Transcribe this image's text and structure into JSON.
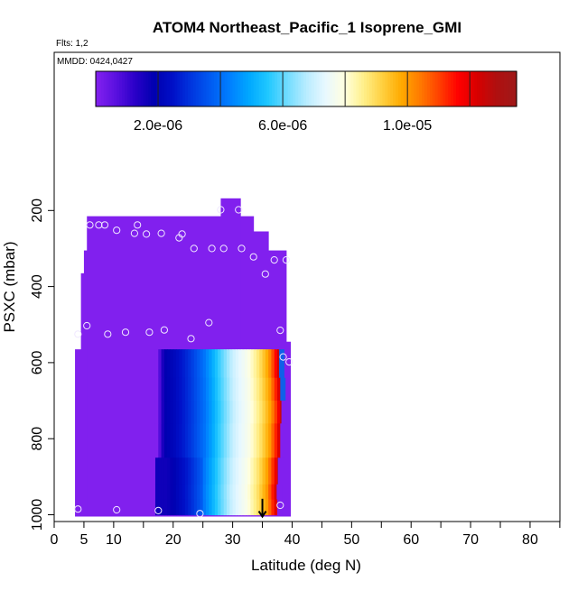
{
  "chart_data": {
    "type": "heatmap",
    "title": "ATOM4 Northeast_Pacific_1 Isoprene_GMI",
    "annotations": {
      "flights": "Flts: 1,2",
      "dates": "MMDD: 0424,0427"
    },
    "xlabel": "Latitude (deg N)",
    "ylabel": "PSXC (mbar)",
    "xlim": [
      0,
      85
    ],
    "ylim": [
      1000,
      60
    ],
    "x_ticks": [
      0,
      5,
      10,
      20,
      30,
      40,
      50,
      60,
      70,
      80
    ],
    "x_minor_ticks": [
      0,
      5,
      10,
      15,
      20,
      25,
      30,
      35,
      40,
      45,
      50,
      55,
      60,
      65,
      70,
      75,
      80,
      85
    ],
    "y_ticks": [
      200,
      400,
      600,
      800,
      1000
    ],
    "colorbar": {
      "min": 0,
      "max": 1.35e-05,
      "tick_values": [
        2e-06,
        6e-06,
        1e-05
      ],
      "tick_labels": [
        "2.0e-06",
        "6.0e-06",
        "1.0e-05"
      ],
      "colors": [
        "#8120ee",
        "#5a10e0",
        "#2a00c8",
        "#0000b0",
        "#0010c8",
        "#0038e0",
        "#005cf2",
        "#0080ff",
        "#00a8ff",
        "#20c8ff",
        "#70dcff",
        "#b8ecff",
        "#e8f8ff",
        "#ffffe0",
        "#fff08c",
        "#ffd040",
        "#ffaa00",
        "#ff7a00",
        "#ff4000",
        "#ff0000",
        "#d80000",
        "#b01010",
        "#a01818"
      ]
    },
    "background_color": "#8120ee",
    "column_tops": [
      {
        "lat_from": 3.5,
        "lat_to": 4.5,
        "p_top": 565
      },
      {
        "lat_from": 4.5,
        "lat_to": 5.0,
        "p_top": 365
      },
      {
        "lat_from": 5.0,
        "lat_to": 5.5,
        "p_top": 305
      },
      {
        "lat_from": 5.5,
        "lat_to": 28.0,
        "p_top": 215
      },
      {
        "lat_from": 28.0,
        "lat_to": 31.3,
        "p_top": 168
      },
      {
        "lat_from": 31.3,
        "lat_to": 33.5,
        "p_top": 215
      },
      {
        "lat_from": 33.5,
        "lat_to": 36.0,
        "p_top": 255
      },
      {
        "lat_from": 36.0,
        "lat_to": 39.0,
        "p_top": 305
      },
      {
        "lat_from": 39.0,
        "lat_to": 39.7,
        "p_top": 545
      }
    ],
    "gradient_region": {
      "lat_from": 17.0,
      "lat_to": 39.0,
      "p_top": 565,
      "p_bottom": 1000,
      "bands": [
        {
          "p_from": 565,
          "p_to": 640,
          "front_lat": 37.8
        },
        {
          "p_from": 640,
          "p_to": 700,
          "front_lat": 38.0
        },
        {
          "p_from": 700,
          "p_to": 760,
          "front_lat": 38.2
        },
        {
          "p_from": 760,
          "p_to": 850,
          "front_lat": 38.0
        },
        {
          "p_from": 850,
          "p_to": 920,
          "front_lat": 37.6
        },
        {
          "p_from": 920,
          "p_to": 960,
          "front_lat": 37.4
        },
        {
          "p_from": 960,
          "p_to": 1000,
          "front_lat": 37.5
        }
      ]
    },
    "observation_points": [
      [
        6,
        238
      ],
      [
        7.5,
        238
      ],
      [
        8.5,
        238
      ],
      [
        14,
        238
      ],
      [
        10.5,
        252
      ],
      [
        13.5,
        260
      ],
      [
        15.5,
        262
      ],
      [
        18,
        260
      ],
      [
        21,
        272
      ],
      [
        21.5,
        262
      ],
      [
        28,
        198
      ],
      [
        31,
        198
      ],
      [
        23.5,
        300
      ],
      [
        26.5,
        300
      ],
      [
        28.5,
        300
      ],
      [
        31.5,
        300
      ],
      [
        33.5,
        322
      ],
      [
        35.5,
        367
      ],
      [
        37,
        330
      ],
      [
        39,
        330
      ],
      [
        4,
        525
      ],
      [
        5.5,
        503
      ],
      [
        9,
        525
      ],
      [
        12,
        520
      ],
      [
        16,
        520
      ],
      [
        18.5,
        514
      ],
      [
        23,
        537
      ],
      [
        26,
        495
      ],
      [
        38,
        515
      ],
      [
        4,
        985
      ],
      [
        10.5,
        987
      ],
      [
        17.5,
        989
      ],
      [
        24.5,
        997
      ],
      [
        38,
        975
      ],
      [
        38.5,
        585
      ],
      [
        39.5,
        598
      ]
    ],
    "arrow": {
      "lat": 35,
      "p_from": 958,
      "p_to": 1005
    }
  }
}
